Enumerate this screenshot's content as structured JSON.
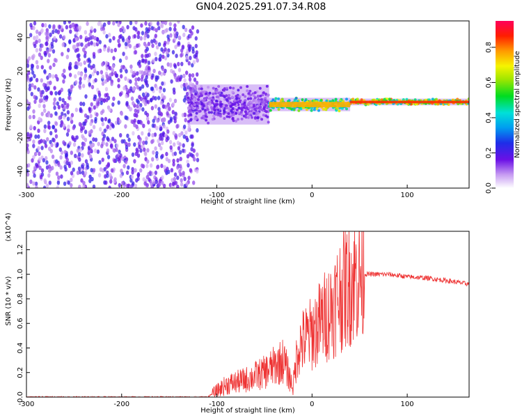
{
  "title": "GN04.2025.291.07.34.R08",
  "chart_data": [
    {
      "type": "heatmap",
      "xlabel": "Height of straight line (km)",
      "ylabel": "Frequency (Hz)",
      "xlim": [
        -300,
        165
      ],
      "ylim": [
        -50,
        50
      ],
      "x_ticks": [
        -300,
        -200,
        -100,
        0,
        100
      ],
      "y_ticks": [
        -40,
        -20,
        0,
        20,
        40
      ],
      "colorbar": {
        "label": "Normalized spectral amplitude",
        "range": [
          0.0,
          0.95
        ],
        "ticks": [
          "0.0",
          "0.2",
          "0.4",
          "0.6",
          "0.8"
        ],
        "colormap": "rainbow (white-violet-blue-cyan-green-yellow-red-magenta)"
      },
      "regions": [
        {
          "x": [
            -300,
            -120
          ],
          "freq_spread_hz": 50,
          "amplitude": 0.05,
          "description": "broadband noise"
        },
        {
          "x": [
            -130,
            -45
          ],
          "freq_spread_hz": 12,
          "amplitude": 0.2
        },
        {
          "x": [
            -45,
            40
          ],
          "freq_spread_hz": 4,
          "amplitude": 0.8
        },
        {
          "x": [
            40,
            165
          ],
          "freq_spread_hz": 2,
          "amplitude": 0.9,
          "center_hz": 1.5
        }
      ],
      "legend": "none",
      "grid": false
    },
    {
      "type": "line",
      "xlabel": "Height of straight line (km)",
      "ylabel": "SNR (10 * v/v)",
      "y_multiplier": "(x10^4)",
      "xlim": [
        -300,
        165
      ],
      "ylim": [
        0,
        1.35
      ],
      "x_ticks": [
        -300,
        -200,
        -100,
        0,
        100
      ],
      "y_ticks": [
        "0.0",
        "0.2",
        "0.4",
        "0.6",
        "0.8",
        "1.0",
        "1.2"
      ],
      "series": [
        {
          "color": "#ee3333",
          "x": [
            -300,
            -250,
            -200,
            -150,
            -110,
            -100,
            -90,
            -80,
            -70,
            -60,
            -50,
            -40,
            -30,
            -20,
            -15,
            -10,
            0,
            10,
            20,
            30,
            40,
            50,
            60,
            80,
            100,
            120,
            140,
            165
          ],
          "y": [
            0.0,
            0.0,
            0.0,
            0.0,
            0.0,
            0.05,
            0.1,
            0.12,
            0.14,
            0.17,
            0.2,
            0.25,
            0.3,
            0.08,
            0.4,
            0.45,
            0.52,
            0.62,
            0.72,
            0.85,
            0.95,
            1.0,
            1.0,
            1.0,
            0.98,
            0.97,
            0.95,
            0.92
          ]
        }
      ],
      "legend": "none",
      "grid": false
    }
  ]
}
